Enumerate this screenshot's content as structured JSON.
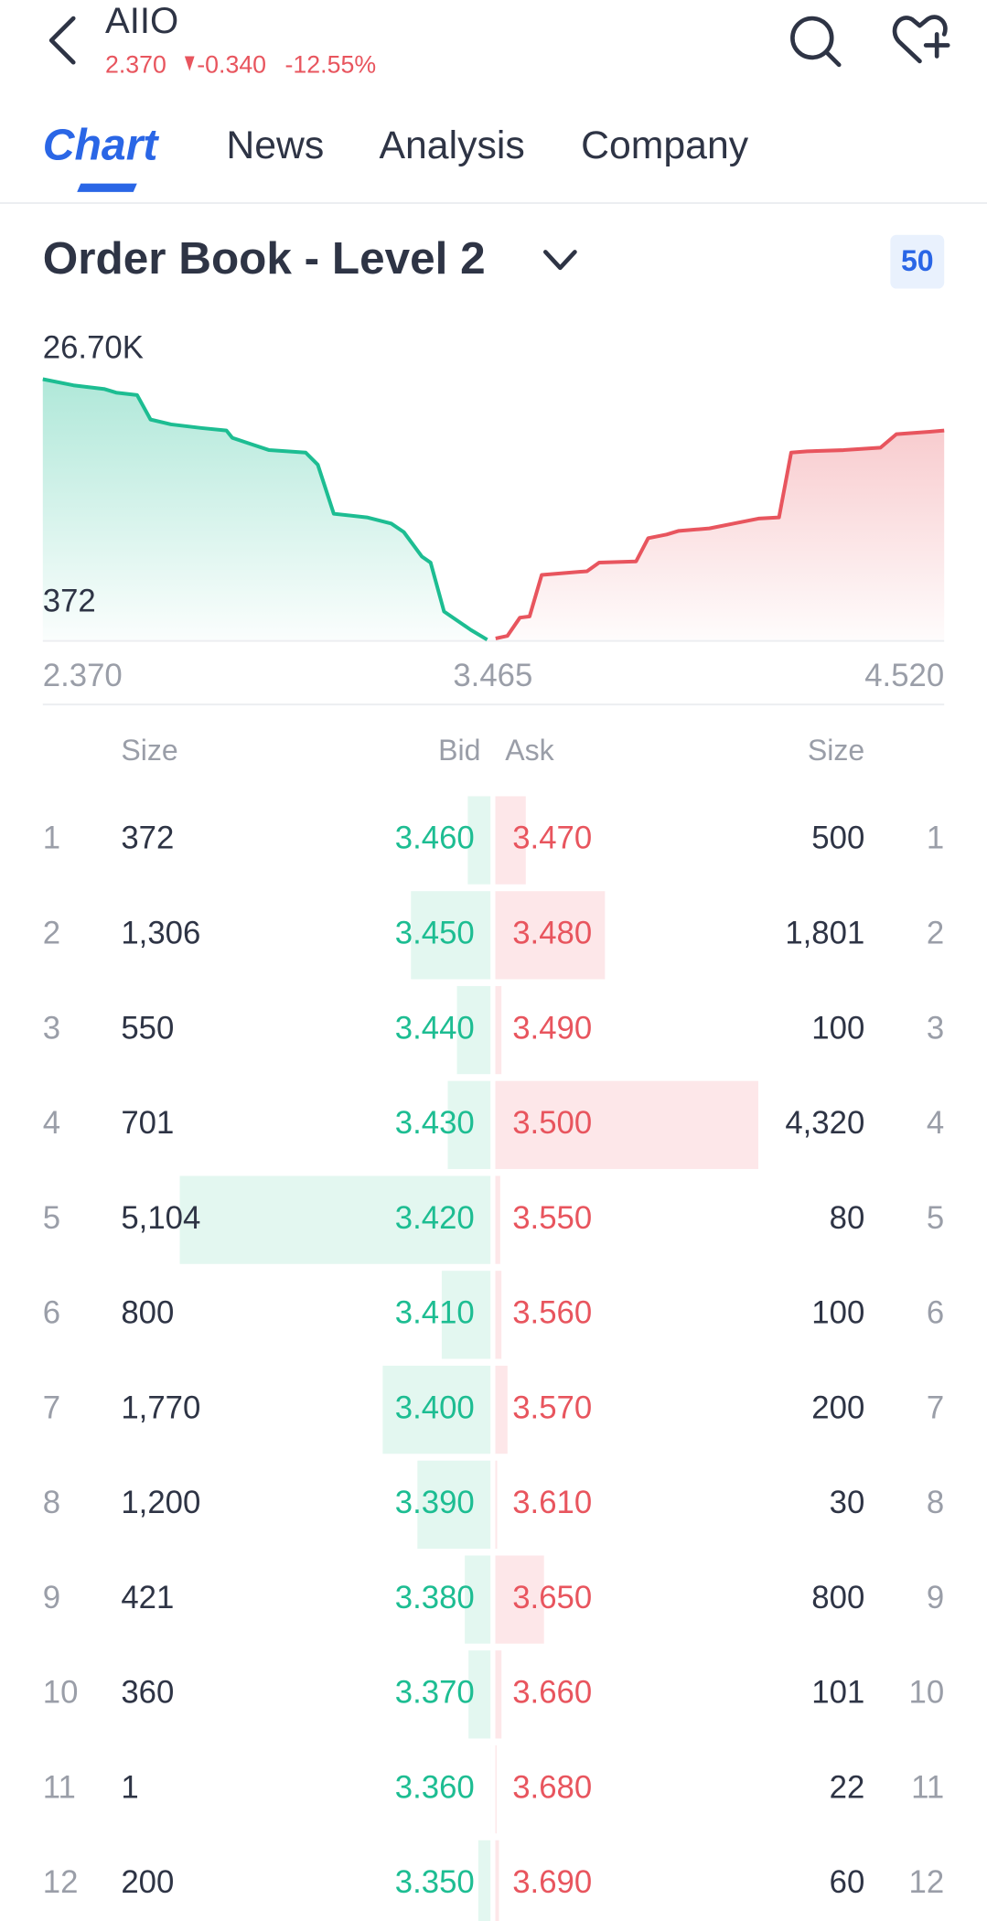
{
  "header": {
    "symbol": "AIIO",
    "price": "2.370",
    "change": "-0.340",
    "change_pct": "-12.55%"
  },
  "tabs": [
    "Chart",
    "News",
    "Analysis",
    "Company"
  ],
  "order_book": {
    "title": "Order Book - Level 2",
    "depth_badge": "50",
    "depth_chart": {
      "y_labels": [
        "26.70K",
        "372"
      ],
      "x_labels": [
        "2.370",
        "3.465",
        "4.520"
      ],
      "xlim": [
        2.37,
        4.52
      ],
      "ylim": [
        372,
        26700
      ],
      "bids": {
        "color": "#1dbd92",
        "x": [
          2.37,
          2.443,
          2.516,
          2.545,
          2.595,
          2.627,
          2.676,
          2.749,
          2.808,
          2.822,
          2.866,
          2.91,
          2.997,
          3.026,
          3.064,
          3.143,
          3.201,
          3.231,
          3.274,
          3.295,
          3.327,
          3.391,
          3.43
        ],
        "y": [
          26700,
          26080,
          25710,
          25340,
          25090,
          22620,
          22130,
          21760,
          21510,
          20770,
          20150,
          19530,
          19280,
          18050,
          13100,
          12730,
          12110,
          11250,
          8780,
          8160,
          3220,
          1360,
          372
        ]
      },
      "asks": {
        "color": "#e8555e",
        "x": [
          3.45,
          3.478,
          3.508,
          3.531,
          3.56,
          3.668,
          3.697,
          3.785,
          3.814,
          3.858,
          3.887,
          3.96,
          4.018,
          4.077,
          4.126,
          4.155,
          4.193,
          4.28,
          4.368,
          4.406,
          4.485,
          4.52
        ],
        "y": [
          500,
          750,
          2600,
          2720,
          6920,
          7290,
          8160,
          8280,
          10630,
          11000,
          11370,
          11620,
          12110,
          12610,
          12730,
          19280,
          19410,
          19530,
          19780,
          21140,
          21380,
          21510
        ]
      }
    },
    "columns": [
      "Size",
      "Bid",
      "Ask",
      "Size"
    ],
    "rows": [
      {
        "level": 1,
        "bid_size": 372,
        "bid": "3.460",
        "ask": "3.470",
        "ask_size": 500
      },
      {
        "level": 2,
        "bid_size": {
          "value": 1306,
          "label": "1,306"
        },
        "bid": "3.450",
        "ask": "3.480",
        "ask_size": {
          "value": 1801,
          "label": "1,801"
        }
      },
      {
        "level": 3,
        "bid_size": 550,
        "bid": "3.440",
        "ask": "3.490",
        "ask_size": 100
      },
      {
        "level": 4,
        "bid_size": 701,
        "bid": "3.430",
        "ask": "3.500",
        "ask_size": {
          "value": 4320,
          "label": "4,320"
        }
      },
      {
        "level": 5,
        "bid_size": {
          "value": 5104,
          "label": "5,104"
        },
        "bid": "3.420",
        "ask": "3.550",
        "ask_size": 80
      },
      {
        "level": 6,
        "bid_size": 800,
        "bid": "3.410",
        "ask": "3.560",
        "ask_size": 100
      },
      {
        "level": 7,
        "bid_size": {
          "value": 1770,
          "label": "1,770"
        },
        "bid": "3.400",
        "ask": "3.570",
        "ask_size": 200
      },
      {
        "level": 8,
        "bid_size": {
          "value": 1200,
          "label": "1,200"
        },
        "bid": "3.390",
        "ask": "3.610",
        "ask_size": 30
      },
      {
        "level": 9,
        "bid_size": 421,
        "bid": "3.380",
        "ask": "3.650",
        "ask_size": 800
      },
      {
        "level": 10,
        "bid_size": 360,
        "bid": "3.370",
        "ask": "3.660",
        "ask_size": 101
      },
      {
        "level": 11,
        "bid_size": 1,
        "bid": "3.360",
        "ask": "3.680",
        "ask_size": 22
      },
      {
        "level": 12,
        "bid_size": 200,
        "bid": "3.350",
        "ask": "3.690",
        "ask_size": 60
      }
    ]
  }
}
